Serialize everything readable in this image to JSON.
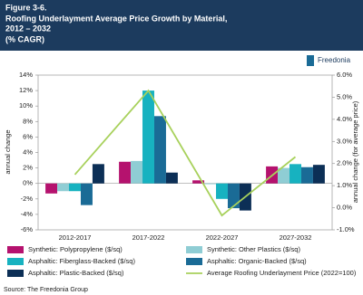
{
  "chart_data": {
    "type": "bar",
    "figure": "Figure 3-6.",
    "title_lines": [
      "Roofing Underlayment Average Price Growth by Material,",
      "2012 – 2032"
    ],
    "subtitle": "(% CAGR)",
    "brand": "Freedonia",
    "source": "Source: The Freedonia Group",
    "ylabel": "annual change",
    "y2label": "annual change (for average price)",
    "categories": [
      "2012-2017",
      "2017-2022",
      "2022-2027",
      "2027-2032"
    ],
    "ylim": [
      -6,
      14
    ],
    "yticks": [
      {
        "value": -6,
        "label": "-6%"
      },
      {
        "value": -4,
        "label": "-4%"
      },
      {
        "value": -2,
        "label": "-2%"
      },
      {
        "value": 0,
        "label": "0%"
      },
      {
        "value": 2,
        "label": "2%"
      },
      {
        "value": 4,
        "label": "4%"
      },
      {
        "value": 6,
        "label": "6%"
      },
      {
        "value": 8,
        "label": "8%"
      },
      {
        "value": 10,
        "label": "10%"
      },
      {
        "value": 12,
        "label": "12%"
      },
      {
        "value": 14,
        "label": "14%"
      }
    ],
    "y2lim": [
      -1,
      6
    ],
    "y2ticks": [
      {
        "value": -1,
        "label": "-1.0%"
      },
      {
        "value": 0,
        "label": "0.0%"
      },
      {
        "value": 1,
        "label": "1.0%"
      },
      {
        "value": 2,
        "label": "2.0%"
      },
      {
        "value": 3,
        "label": "3.0%"
      },
      {
        "value": 4,
        "label": "4.0%"
      },
      {
        "value": 5,
        "label": "5.0%"
      },
      {
        "value": 6,
        "label": "6.0%"
      }
    ],
    "series": [
      {
        "name": "Synthetic: Polypropylene ($/sq)",
        "color": "#b5126e",
        "values": [
          -1.3,
          2.8,
          0.4,
          2.2
        ]
      },
      {
        "name": "Synthetic: Other Plastics ($/sq)",
        "color": "#8fcdd4",
        "values": [
          -1.0,
          2.9,
          -0.1,
          2.0
        ]
      },
      {
        "name": "Asphaltic: Fiberglass-Backed ($/sq)",
        "color": "#17b2c0",
        "values": [
          -1.0,
          12.0,
          -2.0,
          2.5
        ]
      },
      {
        "name": "Asphaltic: Organic-Backed ($/sq)",
        "color": "#1a6b96",
        "values": [
          -2.8,
          8.7,
          -3.2,
          2.1
        ]
      },
      {
        "name": "Asphaltic: Plastic-Backed ($/sq)",
        "color": "#0c2f56",
        "values": [
          2.5,
          1.4,
          -3.5,
          2.4
        ]
      },
      {
        "name": "Average Roofing Underlayment Price (2022=100)",
        "color": "#a8d15c",
        "type": "line",
        "axis": "y2",
        "values": [
          1.5,
          5.3,
          -0.35,
          2.3
        ]
      }
    ]
  }
}
